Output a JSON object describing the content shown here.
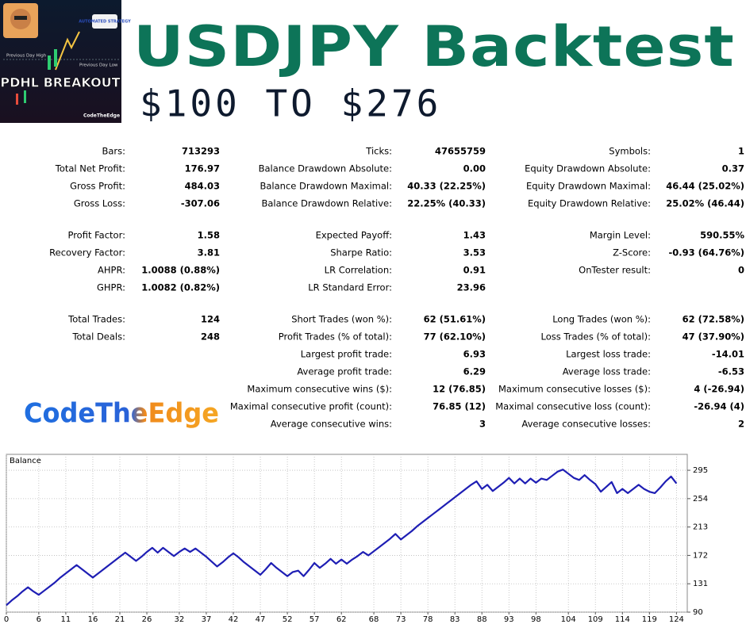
{
  "header": {
    "title": "USDJPY Backtest",
    "subtitle": "$100 TO $276",
    "thumbnail": {
      "badge": "AUTOMATED STRATEGY",
      "high_label": "Previous Day High",
      "low_label": "Previous Day Low",
      "name": "PDHL BREAKOUT",
      "brand": "CodeTheEdge"
    }
  },
  "brand": "CodeTheEdge",
  "stats": [
    [
      [
        [
          "Bars:",
          "713293"
        ],
        [
          "Ticks:",
          "47655759"
        ],
        [
          "Symbols:",
          "1"
        ]
      ],
      [
        [
          "Total Net Profit:",
          "176.97"
        ],
        [
          "Balance Drawdown Absolute:",
          "0.00"
        ],
        [
          "Equity Drawdown Absolute:",
          "0.37"
        ]
      ],
      [
        [
          "Gross Profit:",
          "484.03"
        ],
        [
          "Balance Drawdown Maximal:",
          "40.33 (22.25%)"
        ],
        [
          "Equity Drawdown Maximal:",
          "46.44 (25.02%)"
        ]
      ],
      [
        [
          "Gross Loss:",
          "-307.06"
        ],
        [
          "Balance Drawdown Relative:",
          "22.25% (40.33)"
        ],
        [
          "Equity Drawdown Relative:",
          "25.02% (46.44)"
        ]
      ]
    ],
    [
      [
        [
          "Profit Factor:",
          "1.58"
        ],
        [
          "Expected Payoff:",
          "1.43"
        ],
        [
          "Margin Level:",
          "590.55%"
        ]
      ],
      [
        [
          "Recovery Factor:",
          "3.81"
        ],
        [
          "Sharpe Ratio:",
          "3.53"
        ],
        [
          "Z-Score:",
          "-0.93 (64.76%)"
        ]
      ],
      [
        [
          "AHPR:",
          "1.0088 (0.88%)"
        ],
        [
          "LR Correlation:",
          "0.91"
        ],
        [
          "OnTester result:",
          "0"
        ]
      ],
      [
        [
          "GHPR:",
          "1.0082 (0.82%)"
        ],
        [
          "LR Standard Error:",
          "23.96"
        ],
        null
      ]
    ],
    [
      [
        [
          "Total Trades:",
          "124"
        ],
        [
          "Short Trades (won %):",
          "62 (51.61%)"
        ],
        [
          "Long Trades (won %):",
          "62 (72.58%)"
        ]
      ],
      [
        [
          "Total Deals:",
          "248"
        ],
        [
          "Profit Trades (% of total):",
          "77 (62.10%)"
        ],
        [
          "Loss Trades (% of total):",
          "47 (37.90%)"
        ]
      ],
      [
        null,
        [
          "Largest profit trade:",
          "6.93"
        ],
        [
          "Largest loss trade:",
          "-14.01"
        ]
      ],
      [
        null,
        [
          "Average profit trade:",
          "6.29"
        ],
        [
          "Average loss trade:",
          "-6.53"
        ]
      ],
      [
        null,
        [
          "Maximum consecutive wins ($):",
          "12 (76.85)"
        ],
        [
          "Maximum consecutive losses ($):",
          "4 (-26.94)"
        ]
      ],
      [
        null,
        [
          "Maximal consecutive profit (count):",
          "76.85 (12)"
        ],
        [
          "Maximal consecutive loss (count):",
          "-26.94 (4)"
        ]
      ],
      [
        null,
        [
          "Average consecutive wins:",
          "3"
        ],
        [
          "Average consecutive losses:",
          "2"
        ]
      ]
    ]
  ],
  "chart_data": {
    "type": "line",
    "grid": true,
    "x": [
      0,
      1,
      2,
      3,
      4,
      5,
      6,
      7,
      8,
      9,
      10,
      11,
      12,
      13,
      14,
      15,
      16,
      17,
      18,
      19,
      20,
      21,
      22,
      23,
      24,
      25,
      26,
      27,
      28,
      29,
      30,
      31,
      32,
      33,
      34,
      35,
      36,
      37,
      38,
      39,
      40,
      41,
      42,
      43,
      44,
      45,
      46,
      47,
      48,
      49,
      50,
      51,
      52,
      53,
      54,
      55,
      56,
      57,
      58,
      59,
      60,
      61,
      62,
      63,
      64,
      65,
      66,
      67,
      68,
      69,
      70,
      71,
      72,
      73,
      74,
      75,
      76,
      77,
      78,
      79,
      80,
      81,
      82,
      83,
      84,
      85,
      86,
      87,
      88,
      89,
      90,
      91,
      92,
      93,
      94,
      95,
      96,
      97,
      98,
      99,
      100,
      101,
      102,
      103,
      104,
      105,
      106,
      107,
      108,
      109,
      110,
      111,
      112,
      113,
      114,
      115,
      116,
      117,
      118,
      119,
      120,
      121,
      122,
      123,
      124
    ],
    "series": [
      {
        "name": "Balance",
        "color": "#1e1eb4",
        "values": [
          100,
          107,
          113,
          120,
          126,
          120,
          115,
          121,
          127,
          133,
          140,
          146,
          152,
          158,
          152,
          146,
          140,
          146,
          152,
          158,
          164,
          170,
          176,
          170,
          164,
          170,
          177,
          183,
          176,
          183,
          177,
          171,
          177,
          182,
          177,
          182,
          176,
          170,
          163,
          156,
          162,
          169,
          175,
          169,
          162,
          156,
          150,
          144,
          152,
          161,
          154,
          148,
          142,
          148,
          150,
          142,
          151,
          161,
          154,
          160,
          167,
          160,
          166,
          160,
          166,
          171,
          177,
          172,
          178,
          184,
          190,
          196,
          203,
          195,
          201,
          207,
          214,
          220,
          226,
          232,
          238,
          244,
          250,
          256,
          262,
          268,
          274,
          279,
          268,
          274,
          265,
          271,
          277,
          284,
          276,
          283,
          276,
          283,
          277,
          283,
          281,
          287,
          293,
          296,
          290,
          284,
          281,
          288,
          281,
          275,
          264,
          271,
          278,
          262,
          268,
          262,
          268,
          274,
          268,
          264,
          262,
          270,
          279,
          286,
          276
        ]
      }
    ],
    "xlim": [
      0,
      126
    ],
    "xticks": [
      0,
      6,
      11,
      16,
      21,
      26,
      32,
      37,
      42,
      47,
      52,
      57,
      62,
      68,
      73,
      78,
      83,
      88,
      93,
      98,
      104,
      109,
      114,
      119,
      124
    ],
    "ylim": [
      90,
      318
    ],
    "yticks": [
      90,
      131,
      172,
      213,
      254,
      295
    ]
  }
}
